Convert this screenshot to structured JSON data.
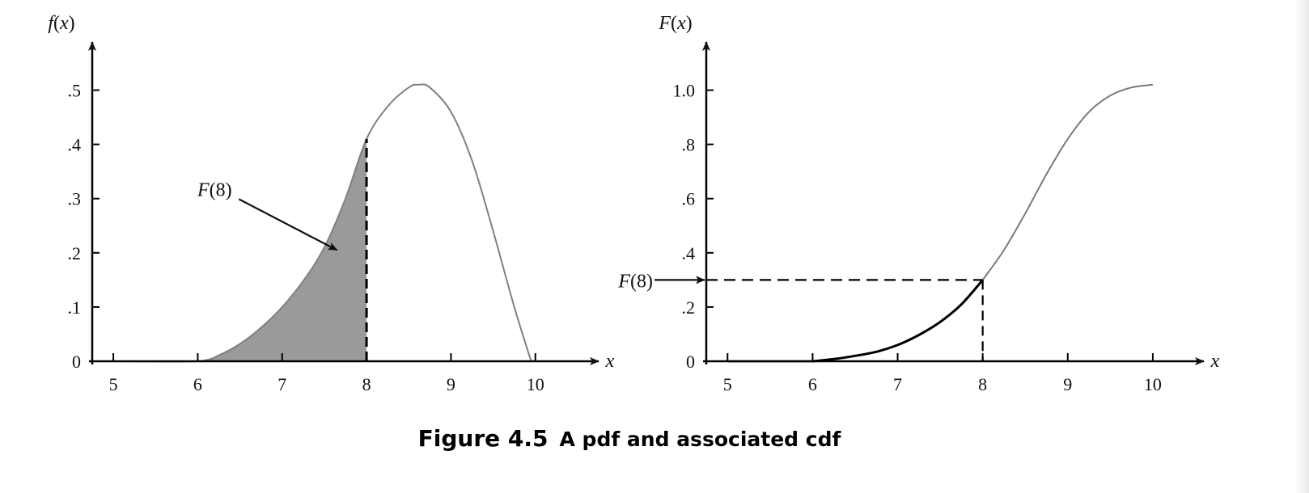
{
  "chart_data": [
    {
      "type": "area",
      "ylabel_func": "f",
      "ylabel_arg": "x",
      "xlabel": "x",
      "xlim": [
        4.75,
        10.75
      ],
      "ylim": [
        0,
        0.55
      ],
      "x_ticks": [
        5,
        6,
        7,
        8,
        9,
        10
      ],
      "x_tick_labels": [
        "5",
        "6",
        "7",
        "8",
        "9",
        "10"
      ],
      "y_ticks": [
        0,
        0.1,
        0.2,
        0.3,
        0.4,
        0.5
      ],
      "y_tick_labels": [
        "0",
        ".1",
        ".2",
        ".3",
        ".4",
        ".5"
      ],
      "series": [
        {
          "x": [
            5,
            6,
            6.25,
            6.5,
            6.75,
            7,
            7.25,
            7.5,
            7.75,
            8,
            8.25,
            8.5,
            8.62,
            8.75,
            9,
            9.25,
            9.5,
            9.75,
            9.95
          ],
          "y": [
            0,
            0,
            0.011,
            0.032,
            0.062,
            0.1,
            0.148,
            0.21,
            0.3,
            0.41,
            0.47,
            0.505,
            0.51,
            0.505,
            0.46,
            0.37,
            0.24,
            0.1,
            0
          ]
        }
      ],
      "shaded_region": {
        "from": 6,
        "to": 8,
        "color": "#9a9a9a"
      },
      "vline": {
        "x": 8,
        "style": "dashed"
      },
      "annotation": {
        "func": "F",
        "arg": "8",
        "text_at": [
          6.2,
          0.305
        ],
        "arrow_to": [
          7.65,
          0.205
        ]
      }
    },
    {
      "type": "line",
      "ylabel_func": "F",
      "ylabel_arg": "x",
      "xlabel": "x",
      "xlim": [
        4.75,
        10.6
      ],
      "ylim": [
        0,
        1.1
      ],
      "x_ticks": [
        5,
        6,
        7,
        8,
        9,
        10
      ],
      "x_tick_labels": [
        "5",
        "6",
        "7",
        "8",
        "9",
        "10"
      ],
      "y_ticks": [
        0,
        0.2,
        0.4,
        0.6,
        0.8,
        1.0
      ],
      "y_tick_labels": [
        "0",
        ".2",
        ".4",
        ".6",
        ".8",
        "1.0"
      ],
      "series": [
        {
          "x": [
            6,
            6.25,
            6.5,
            6.75,
            7,
            7.25,
            7.5,
            7.75,
            8
          ],
          "y": [
            0,
            0.008,
            0.02,
            0.035,
            0.06,
            0.097,
            0.145,
            0.21,
            0.3
          ],
          "style": "bold",
          "color": "#000000"
        },
        {
          "x": [
            8,
            8.25,
            8.5,
            8.75,
            9,
            9.25,
            9.5,
            9.75,
            10
          ],
          "y": [
            0.3,
            0.41,
            0.545,
            0.69,
            0.82,
            0.92,
            0.98,
            1.01,
            1.02
          ],
          "style": "thin",
          "color": "#7a7a7a"
        }
      ],
      "baseline": {
        "from": 5,
        "to": 6
      },
      "marker": {
        "x": 8,
        "y": 0.3,
        "style": "dashed"
      },
      "annotation": {
        "func": "F",
        "arg": "8"
      }
    }
  ],
  "caption": {
    "number": "Figure 4.5",
    "text": "A pdf and associated cdf"
  }
}
